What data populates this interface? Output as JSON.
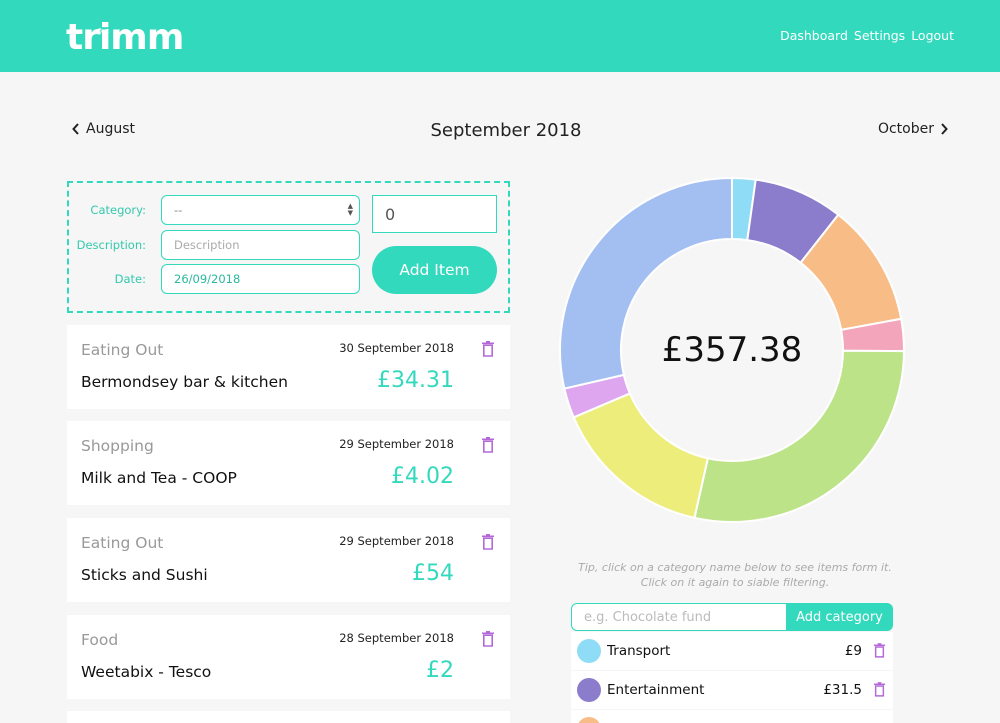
{
  "header": {
    "logo": "trimm",
    "nav": [
      "Dashboard",
      "Settings",
      "Logout"
    ]
  },
  "month_nav": {
    "prev": "August",
    "current": "September 2018",
    "next": "October"
  },
  "form": {
    "category_label": "Category:",
    "category_value": "--",
    "description_label": "Description:",
    "description_placeholder": "Description",
    "date_label": "Date:",
    "date_value": "26/09/2018",
    "amount_value": "0",
    "add_button": "Add Item"
  },
  "items": [
    {
      "category": "Eating Out",
      "date": "30 September 2018",
      "description": "Bermondsey bar & kitchen",
      "amount": "£34.31"
    },
    {
      "category": "Shopping",
      "date": "29 September 2018",
      "description": "Milk and Tea - COOP",
      "amount": "£4.02"
    },
    {
      "category": "Eating Out",
      "date": "29 September 2018",
      "description": "Sticks and Sushi",
      "amount": "£54"
    },
    {
      "category": "Food",
      "date": "28 September 2018",
      "description": "Weetabix - Tesco",
      "amount": "£2"
    }
  ],
  "chart_data": {
    "type": "pie",
    "title": "",
    "total_label": "£357.38",
    "slices": [
      {
        "color": "#8fdcf6",
        "value": 0.022
      },
      {
        "color": "#8c7ccc",
        "value": 0.084
      },
      {
        "color": "#f8bd86",
        "value": 0.115
      },
      {
        "color": "#f3a6bb",
        "value": 0.03
      },
      {
        "color": "#bde388",
        "value": 0.284
      },
      {
        "color": "#eded7c",
        "value": 0.151
      },
      {
        "color": "#dda6ee",
        "value": 0.028
      },
      {
        "color": "#a3bff2",
        "value": 0.286
      }
    ]
  },
  "tip": {
    "line1": "Tip, click on a category name below to see items form it.",
    "line2": "Click on it again to siable filtering."
  },
  "category_form": {
    "placeholder": "e.g. Chocolate fund",
    "add_button": "Add category"
  },
  "categories": [
    {
      "name": "Transport",
      "amount": "£9",
      "color": "#8fdcf6"
    },
    {
      "name": "Entertainment",
      "amount": "£31.5",
      "color": "#8c7ccc"
    },
    {
      "name": "",
      "amount": "",
      "color": "#f8bd86"
    }
  ],
  "colors": {
    "accent": "#33d9bd",
    "trash": "#b36ad8"
  }
}
